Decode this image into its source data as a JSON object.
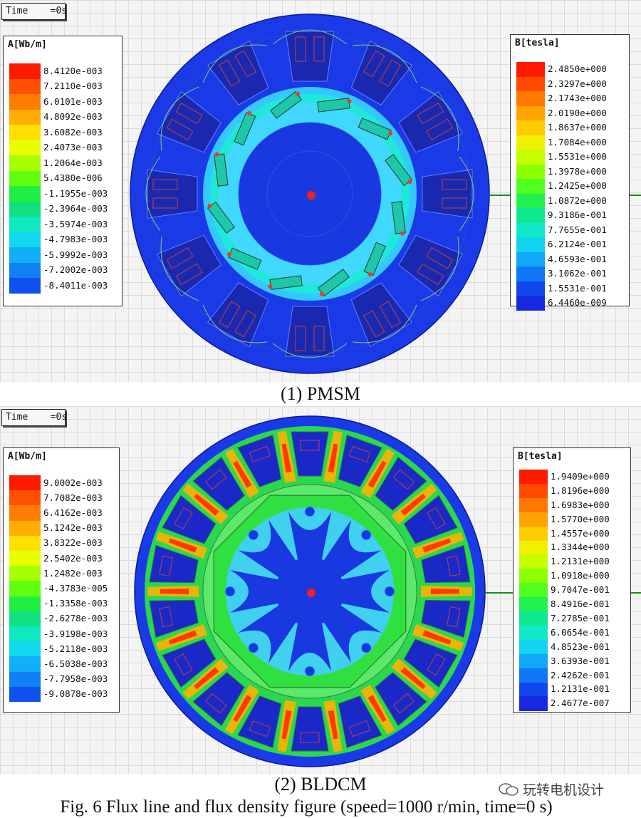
{
  "panels": [
    {
      "time_label": "Time    =0s",
      "legend_a": {
        "title": "A[Wb/m]",
        "values": [
          "8.4120e-003",
          "7.2110e-003",
          "6.0101e-003",
          "4.8092e-003",
          "3.6082e-003",
          "2.4073e-003",
          "1.2064e-003",
          "5.4380e-006",
          "-1.1955e-003",
          "-2.3964e-003",
          "-3.5974e-003",
          "-4.7983e-003",
          "-5.9992e-003",
          "-7.2002e-003",
          "-8.4011e-003"
        ]
      },
      "legend_b": {
        "title": "B[tesla]",
        "values": [
          "2.4850e+000",
          "2.3297e+000",
          "2.1743e+000",
          "2.0190e+000",
          "1.8637e+000",
          "1.7084e+000",
          "1.5531e+000",
          "1.3978e+000",
          "1.2425e+000",
          "1.0872e+000",
          "9.3186e-001",
          "7.7655e-001",
          "6.2124e-001",
          "4.6593e-001",
          "3.1062e-001",
          "1.5531e-001",
          "6.4460e-009"
        ]
      },
      "caption": "(1)    PMSM"
    },
    {
      "time_label": "Time    =0s",
      "legend_a": {
        "title": "A[Wb/m]",
        "values": [
          "9.0002e-003",
          "7.7082e-003",
          "6.4162e-003",
          "5.1242e-003",
          "3.8322e-003",
          "2.5402e-003",
          "1.2482e-003",
          "-4.3783e-005",
          "-1.3358e-003",
          "-2.6278e-003",
          "-3.9198e-003",
          "-5.2118e-003",
          "-6.5038e-003",
          "-7.7958e-003",
          "-9.0878e-003"
        ]
      },
      "legend_b": {
        "title": "B[tesla]",
        "values": [
          "1.9409e+000",
          "1.8196e+000",
          "1.6983e+000",
          "1.5770e+000",
          "1.4557e+000",
          "1.3344e+000",
          "1.2131e+000",
          "1.0918e+000",
          "9.7047e-001",
          "8.4916e-001",
          "7.2785e-001",
          "6.0654e-001",
          "4.8523e-001",
          "3.6393e-001",
          "2.4262e-001",
          "1.2131e-001",
          "2.4677e-007"
        ]
      },
      "caption": "(2)    BLDCM"
    }
  ],
  "colors": {
    "scale_15": [
      "#ff1a00",
      "#ff4f00",
      "#ff7d00",
      "#ffad00",
      "#ffe000",
      "#e8ff00",
      "#a8ff00",
      "#60ff10",
      "#20ee40",
      "#10e080",
      "#10e8c0",
      "#10d8ee",
      "#10b0f8",
      "#1080f4",
      "#1050ee"
    ],
    "scale_17": [
      "#ff1a00",
      "#ff4a00",
      "#ff7800",
      "#ffa300",
      "#ffcc00",
      "#f0f000",
      "#c4ff00",
      "#8cff00",
      "#50ff20",
      "#20f050",
      "#10e890",
      "#10e8c8",
      "#10d4f0",
      "#10a8f8",
      "#1078f4",
      "#1048ee",
      "#1828e0"
    ],
    "stator_blue": "#1a3ae8",
    "dark_blue": "#1828c8",
    "shaft_blue": "#1040e0"
  },
  "figure_caption": "Fig. 6 Flux line and flux density figure (speed=1000 r/min, time=0 s)",
  "watermark": "玩转电机设计"
}
